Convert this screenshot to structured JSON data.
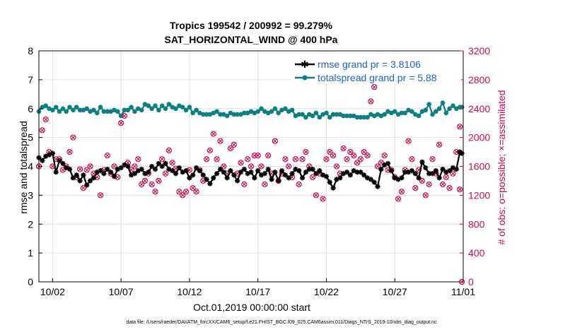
{
  "chart_data": {
    "type": "line",
    "title": "Tropics 199542 / 200992 = 99.279%",
    "subtitle": "SAT_HORIZONTAL_WIND @ 400 hPa",
    "xlabel": "Oct.01,2019 00:00:00 start",
    "ylabel": "rmse and totalspread",
    "y2label": "# of obs: o=possible; ×=assimilated",
    "xlim": [
      1,
      32
    ],
    "ylim": [
      0,
      8
    ],
    "y2lim": [
      0,
      3200
    ],
    "x_ticks": [
      2,
      7,
      12,
      17,
      22,
      27,
      32
    ],
    "x_tick_labels": [
      "10/02",
      "10/07",
      "10/12",
      "10/17",
      "10/22",
      "10/27",
      "11/01"
    ],
    "y_ticks": [
      "0",
      "1",
      "2",
      "3",
      "4",
      "5",
      "6",
      "7",
      "8"
    ],
    "y2_ticks": [
      "0",
      "400",
      "800",
      "1200",
      "1600",
      "2000",
      "2400",
      "2800",
      "3200"
    ],
    "grid": true,
    "legend_position": "top-right",
    "colors": {
      "rmse": "#000000",
      "spread": "#0b8080",
      "obs": "#cc0a55",
      "legend_text": "#1f5fd6"
    },
    "series": [
      {
        "name": "rmse grand pr = 3.8106",
        "color": "#000000",
        "marker": "star",
        "x": [
          1.0,
          1.25,
          1.5,
          1.75,
          2.0,
          2.25,
          2.5,
          2.75,
          3.0,
          3.25,
          3.5,
          3.75,
          4.0,
          4.25,
          4.5,
          4.75,
          5.0,
          5.25,
          5.5,
          5.75,
          6.0,
          6.25,
          6.5,
          6.75,
          7.0,
          7.25,
          7.5,
          7.75,
          8.0,
          8.25,
          8.5,
          8.75,
          9.0,
          9.25,
          9.5,
          9.75,
          10.0,
          10.25,
          10.5,
          10.75,
          11.0,
          11.25,
          11.5,
          11.75,
          12.0,
          12.25,
          12.5,
          12.75,
          13.0,
          13.25,
          13.5,
          13.75,
          14.0,
          14.25,
          14.5,
          14.75,
          15.0,
          15.25,
          15.5,
          15.75,
          16.0,
          16.25,
          16.5,
          16.75,
          17.0,
          17.25,
          17.5,
          17.75,
          18.0,
          18.25,
          18.5,
          18.75,
          19.0,
          19.25,
          19.5,
          19.75,
          20.0,
          20.25,
          20.5,
          20.75,
          21.0,
          21.25,
          21.5,
          21.75,
          22.0,
          22.25,
          22.5,
          22.75,
          23.0,
          23.25,
          23.5,
          23.75,
          24.0,
          24.25,
          24.5,
          24.75,
          25.0,
          25.25,
          25.5,
          25.75,
          26.0,
          26.25,
          26.5,
          26.75,
          27.0,
          27.25,
          27.5,
          27.75,
          28.0,
          28.25,
          28.5,
          28.75,
          29.0,
          29.25,
          29.5,
          29.75,
          30.0,
          30.25,
          30.5,
          30.75,
          31.0,
          31.25,
          31.5,
          31.75
        ],
        "values": [
          4.3,
          4.2,
          4.35,
          4.4,
          4.45,
          3.8,
          4.2,
          4.1,
          3.95,
          3.9,
          3.6,
          3.7,
          3.5,
          3.7,
          3.35,
          3.5,
          3.6,
          3.8,
          3.85,
          3.75,
          3.9,
          3.8,
          3.65,
          3.9,
          3.95,
          4.05,
          4.0,
          3.7,
          3.75,
          3.85,
          3.9,
          3.75,
          3.8,
          4.0,
          3.9,
          4.1,
          4.0,
          4.1,
          3.9,
          3.85,
          3.75,
          3.95,
          3.8,
          3.85,
          3.6,
          3.7,
          3.95,
          3.85,
          3.7,
          3.55,
          3.4,
          3.6,
          3.75,
          3.9,
          3.8,
          3.6,
          3.85,
          3.7,
          3.5,
          3.8,
          3.9,
          3.75,
          3.8,
          3.6,
          3.85,
          3.7,
          3.75,
          3.9,
          3.55,
          3.8,
          3.5,
          3.85,
          3.7,
          3.6,
          3.75,
          3.9,
          3.85,
          3.6,
          3.8,
          3.9,
          3.9,
          3.75,
          3.85,
          3.7,
          3.65,
          3.45,
          3.25,
          3.55,
          3.6,
          3.75,
          3.8,
          3.7,
          3.85,
          3.8,
          3.8,
          3.7,
          3.6,
          3.55,
          3.45,
          3.3,
          3.9,
          4.05,
          4.1,
          3.85,
          3.6,
          3.55,
          3.6,
          3.8,
          3.8,
          3.85,
          3.75,
          3.6,
          4.15,
          3.95,
          3.75,
          3.75,
          3.85,
          3.6,
          3.9,
          3.8,
          3.85,
          3.95,
          3.9,
          4.5
        ],
        "extra_x": [
          31.9
        ],
        "extra_values": [
          4.45
        ]
      },
      {
        "name": "totalspread grand pr = 5.88",
        "color": "#0b8080",
        "marker": "circle",
        "x": [
          1.0,
          1.25,
          1.5,
          1.75,
          2.0,
          2.25,
          2.5,
          2.75,
          3.0,
          3.25,
          3.5,
          3.75,
          4.0,
          4.25,
          4.5,
          4.75,
          5.0,
          5.25,
          5.5,
          5.75,
          6.0,
          6.25,
          6.5,
          6.75,
          7.0,
          7.25,
          7.5,
          7.75,
          8.0,
          8.25,
          8.5,
          8.75,
          9.0,
          9.25,
          9.5,
          9.75,
          10.0,
          10.25,
          10.5,
          10.75,
          11.0,
          11.25,
          11.5,
          11.75,
          12.0,
          12.25,
          12.5,
          12.75,
          13.0,
          13.25,
          13.5,
          13.75,
          14.0,
          14.25,
          14.5,
          14.75,
          15.0,
          15.25,
          15.5,
          15.75,
          16.0,
          16.25,
          16.5,
          16.75,
          17.0,
          17.25,
          17.5,
          17.75,
          18.0,
          18.25,
          18.5,
          18.75,
          19.0,
          19.25,
          19.5,
          19.75,
          20.0,
          20.25,
          20.5,
          20.75,
          21.0,
          21.25,
          21.5,
          21.75,
          22.0,
          22.25,
          22.5,
          22.75,
          23.0,
          23.25,
          23.5,
          23.75,
          24.0,
          24.25,
          24.5,
          24.75,
          25.0,
          25.25,
          25.5,
          25.75,
          26.0,
          26.25,
          26.5,
          26.75,
          27.0,
          27.25,
          27.5,
          27.75,
          28.0,
          28.25,
          28.5,
          28.75,
          29.0,
          29.25,
          29.5,
          29.75,
          30.0,
          30.25,
          30.5,
          30.75,
          31.0,
          31.25,
          31.5,
          31.75
        ],
        "values": [
          5.9,
          6.05,
          6.1,
          6.0,
          5.95,
          6.05,
          5.9,
          6.0,
          5.9,
          6.05,
          5.95,
          6.05,
          5.95,
          5.95,
          6.0,
          5.9,
          5.95,
          5.85,
          6.05,
          5.9,
          5.9,
          5.9,
          5.95,
          5.9,
          5.75,
          5.95,
          5.95,
          6.05,
          5.9,
          6.0,
          5.95,
          6.15,
          6.1,
          6.0,
          6.1,
          5.95,
          6.1,
          6.0,
          6.15,
          6.05,
          6.0,
          6.1,
          6.05,
          5.95,
          6.05,
          5.85,
          5.95,
          5.85,
          5.8,
          5.8,
          5.8,
          5.85,
          5.9,
          5.8,
          5.8,
          5.75,
          5.85,
          5.8,
          5.8,
          5.8,
          5.85,
          5.85,
          5.9,
          5.85,
          5.9,
          6.0,
          5.9,
          5.85,
          5.9,
          6.0,
          5.85,
          5.95,
          6.0,
          5.9,
          5.95,
          5.75,
          5.8,
          5.8,
          5.7,
          5.8,
          5.75,
          5.85,
          5.7,
          5.8,
          5.85,
          5.7,
          5.8,
          5.8,
          5.8,
          5.75,
          5.75,
          5.75,
          5.75,
          5.7,
          5.7,
          5.7,
          5.7,
          5.8,
          5.75,
          5.8,
          5.75,
          5.8,
          5.9,
          5.85,
          5.9,
          5.8,
          5.85,
          5.85,
          5.95,
          5.9,
          5.8,
          5.75,
          5.9,
          5.95,
          6.15,
          5.8,
          5.9,
          6.0,
          6.2,
          5.85,
          6.0,
          6.1,
          6.0,
          6.05
        ],
        "extra_x": [
          31.9
        ],
        "extra_values": [
          6.05
        ]
      },
      {
        "name": "# of obs (possible / assimilated)",
        "axis": "right",
        "color": "#cc0a55",
        "marker": "circle-with-x",
        "x": [
          1.0,
          1.25,
          1.5,
          1.75,
          2.0,
          2.25,
          2.5,
          2.75,
          3.0,
          3.25,
          3.5,
          3.75,
          4.0,
          4.25,
          4.5,
          4.75,
          5.0,
          5.25,
          5.5,
          5.75,
          6.0,
          6.25,
          6.5,
          6.75,
          7.0,
          7.25,
          7.5,
          7.75,
          8.0,
          8.25,
          8.5,
          8.75,
          9.0,
          9.25,
          9.5,
          9.75,
          10.0,
          10.25,
          10.5,
          10.75,
          11.0,
          11.25,
          11.5,
          11.75,
          12.0,
          12.25,
          12.5,
          12.75,
          13.0,
          13.25,
          13.5,
          13.75,
          14.0,
          14.25,
          14.5,
          14.75,
          15.0,
          15.25,
          15.5,
          15.75,
          16.0,
          16.25,
          16.5,
          16.75,
          17.0,
          17.25,
          17.5,
          17.75,
          18.0,
          18.25,
          18.5,
          18.75,
          19.0,
          19.25,
          19.5,
          19.75,
          20.0,
          20.25,
          20.5,
          20.75,
          21.0,
          21.25,
          21.5,
          21.75,
          22.0,
          22.25,
          22.5,
          22.75,
          23.0,
          23.25,
          23.5,
          23.75,
          24.0,
          24.25,
          24.5,
          24.75,
          25.0,
          25.25,
          25.5,
          25.75,
          26.0,
          26.25,
          26.5,
          26.75,
          27.0,
          27.25,
          27.5,
          27.75,
          28.0,
          28.25,
          28.5,
          28.75,
          29.0,
          29.25,
          29.5,
          29.75,
          30.0,
          30.25,
          30.5,
          30.75,
          31.0,
          31.25,
          31.5,
          31.75
        ],
        "values": [
          1600,
          2100,
          2250,
          1800,
          1600,
          1700,
          1700,
          1550,
          1600,
          1800,
          2000,
          1450,
          1560,
          1300,
          1550,
          1600,
          1500,
          1450,
          1200,
          1550,
          1750,
          1500,
          1600,
          1450,
          2200,
          2300,
          1650,
          1550,
          1600,
          1700,
          1350,
          1400,
          1500,
          1350,
          1250,
          1400,
          1700,
          1500,
          1820,
          1650,
          1570,
          1250,
          1200,
          1250,
          1550,
          1300,
          1250,
          1550,
          1400,
          1700,
          1820,
          2050,
          1700,
          1950,
          1600,
          1500,
          1850,
          1900,
          1500,
          1650,
          1350,
          1700,
          1600,
          1750,
          1750,
          1600,
          1350,
          1750,
          1500,
          1950,
          1400,
          1500,
          1700,
          1600,
          1450,
          1700,
          1350,
          1700,
          1800,
          1600,
          1450,
          1200,
          1500,
          1150,
          1700,
          1800,
          1750,
          1600,
          1500,
          1850,
          1700,
          1800,
          1750,
          1650,
          1700,
          1800,
          1750,
          2500,
          2700,
          1600,
          1650,
          1750,
          1550,
          1550,
          1450,
          1150,
          1250,
          1550,
          1950,
          1700,
          1300,
          1550,
          1400,
          1200,
          1350,
          1700,
          1500,
          1900,
          1350,
          1450,
          1300,
          1500,
          1800,
          2150
        ],
        "extra_x": [
          31.75,
          31.9
        ],
        "extra_values": [
          1280,
          0
        ]
      }
    ],
    "footnote": "data file: /Users/raeder/DAI/ATM_forcXX/CAM6_setup/f.e21.FHIST_BGC.f09_025.CAM6assim.011/Diags_NTrS_2019-10/obs_diag_output.nc"
  }
}
